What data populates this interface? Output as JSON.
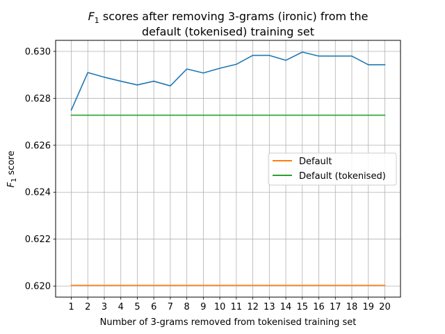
{
  "chart_data": {
    "type": "line",
    "title": {
      "line1_prefix": "F",
      "line1_sub": "1",
      "line1_rest": " scores after removing 3-grams (ironic) from the",
      "line2": "default (tokenised) training set"
    },
    "xlabel": "Number of 3-grams removed from tokenised training set",
    "ylabel": {
      "prefix": "F",
      "sub": "1",
      "rest": " score"
    },
    "xlim": [
      0.05,
      20.95
    ],
    "ylim": [
      0.61953,
      0.63047
    ],
    "x_ticks": [
      1,
      2,
      3,
      4,
      5,
      6,
      7,
      8,
      9,
      10,
      11,
      12,
      13,
      14,
      15,
      16,
      17,
      18,
      19,
      20
    ],
    "y_ticks": [
      0.62,
      0.622,
      0.624,
      0.626,
      0.628,
      0.63
    ],
    "y_tick_labels": [
      "0.620",
      "0.622",
      "0.624",
      "0.626",
      "0.628",
      "0.630"
    ],
    "grid": true,
    "legend_position": "center-right",
    "x": [
      1,
      2,
      3,
      4,
      5,
      6,
      7,
      8,
      9,
      10,
      11,
      12,
      13,
      14,
      15,
      16,
      17,
      18,
      19,
      20
    ],
    "series": [
      {
        "color": "#1f77b4",
        "values": [
          0.6275,
          0.6291,
          0.6289,
          0.62873,
          0.62857,
          0.62873,
          0.62853,
          0.62925,
          0.62908,
          0.62928,
          0.62945,
          0.62983,
          0.62983,
          0.62962,
          0.62997,
          0.6298,
          0.6298,
          0.6298,
          0.62943,
          0.62943
        ]
      },
      {
        "name": "Default",
        "color": "#ff7f0e",
        "values": [
          0.62003,
          0.62003,
          0.62003,
          0.62003,
          0.62003,
          0.62003,
          0.62003,
          0.62003,
          0.62003,
          0.62003,
          0.62003,
          0.62003,
          0.62003,
          0.62003,
          0.62003,
          0.62003,
          0.62003,
          0.62003,
          0.62003,
          0.62003
        ]
      },
      {
        "name": "Default (tokenised)",
        "color": "#2ca02c",
        "values": [
          0.62728,
          0.62728,
          0.62728,
          0.62728,
          0.62728,
          0.62728,
          0.62728,
          0.62728,
          0.62728,
          0.62728,
          0.62728,
          0.62728,
          0.62728,
          0.62728,
          0.62728,
          0.62728,
          0.62728,
          0.62728,
          0.62728,
          0.62728
        ]
      }
    ]
  }
}
